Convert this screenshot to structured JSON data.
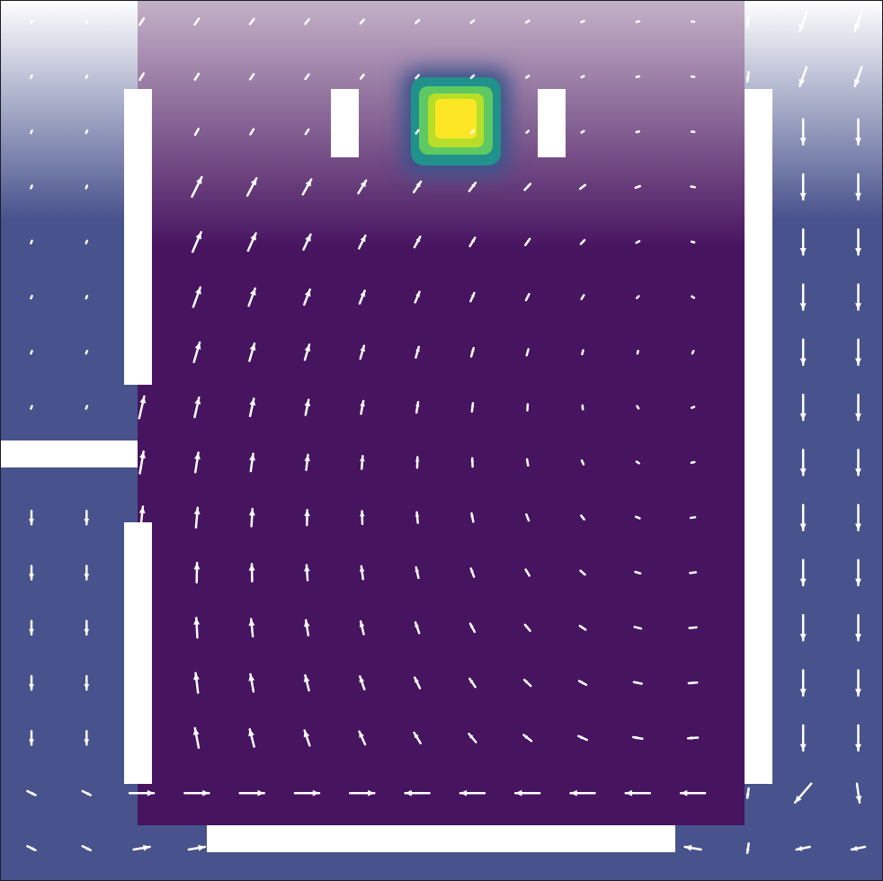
{
  "title": "",
  "colors": {
    "outer_field": "#48528c",
    "outer_fade": "#ffffff",
    "room_field": "#471460",
    "room_fade": "#c4b2c8",
    "walls": "#ffffff",
    "arrows": "#ffffff",
    "frame": "#1c1c28",
    "source_colormap": [
      "#471460",
      "#3b528b",
      "#21918c",
      "#5ec962",
      "#b8de29",
      "#fde725"
    ]
  },
  "field": {
    "grid_columns": 16,
    "grid_rows": 16,
    "source": {
      "column": 8,
      "row": 2,
      "peak_intensity": 1.0
    },
    "room": {
      "from_column": 2.5,
      "to_column": 13.5,
      "from_row": 0,
      "to_row": 15
    }
  }
}
